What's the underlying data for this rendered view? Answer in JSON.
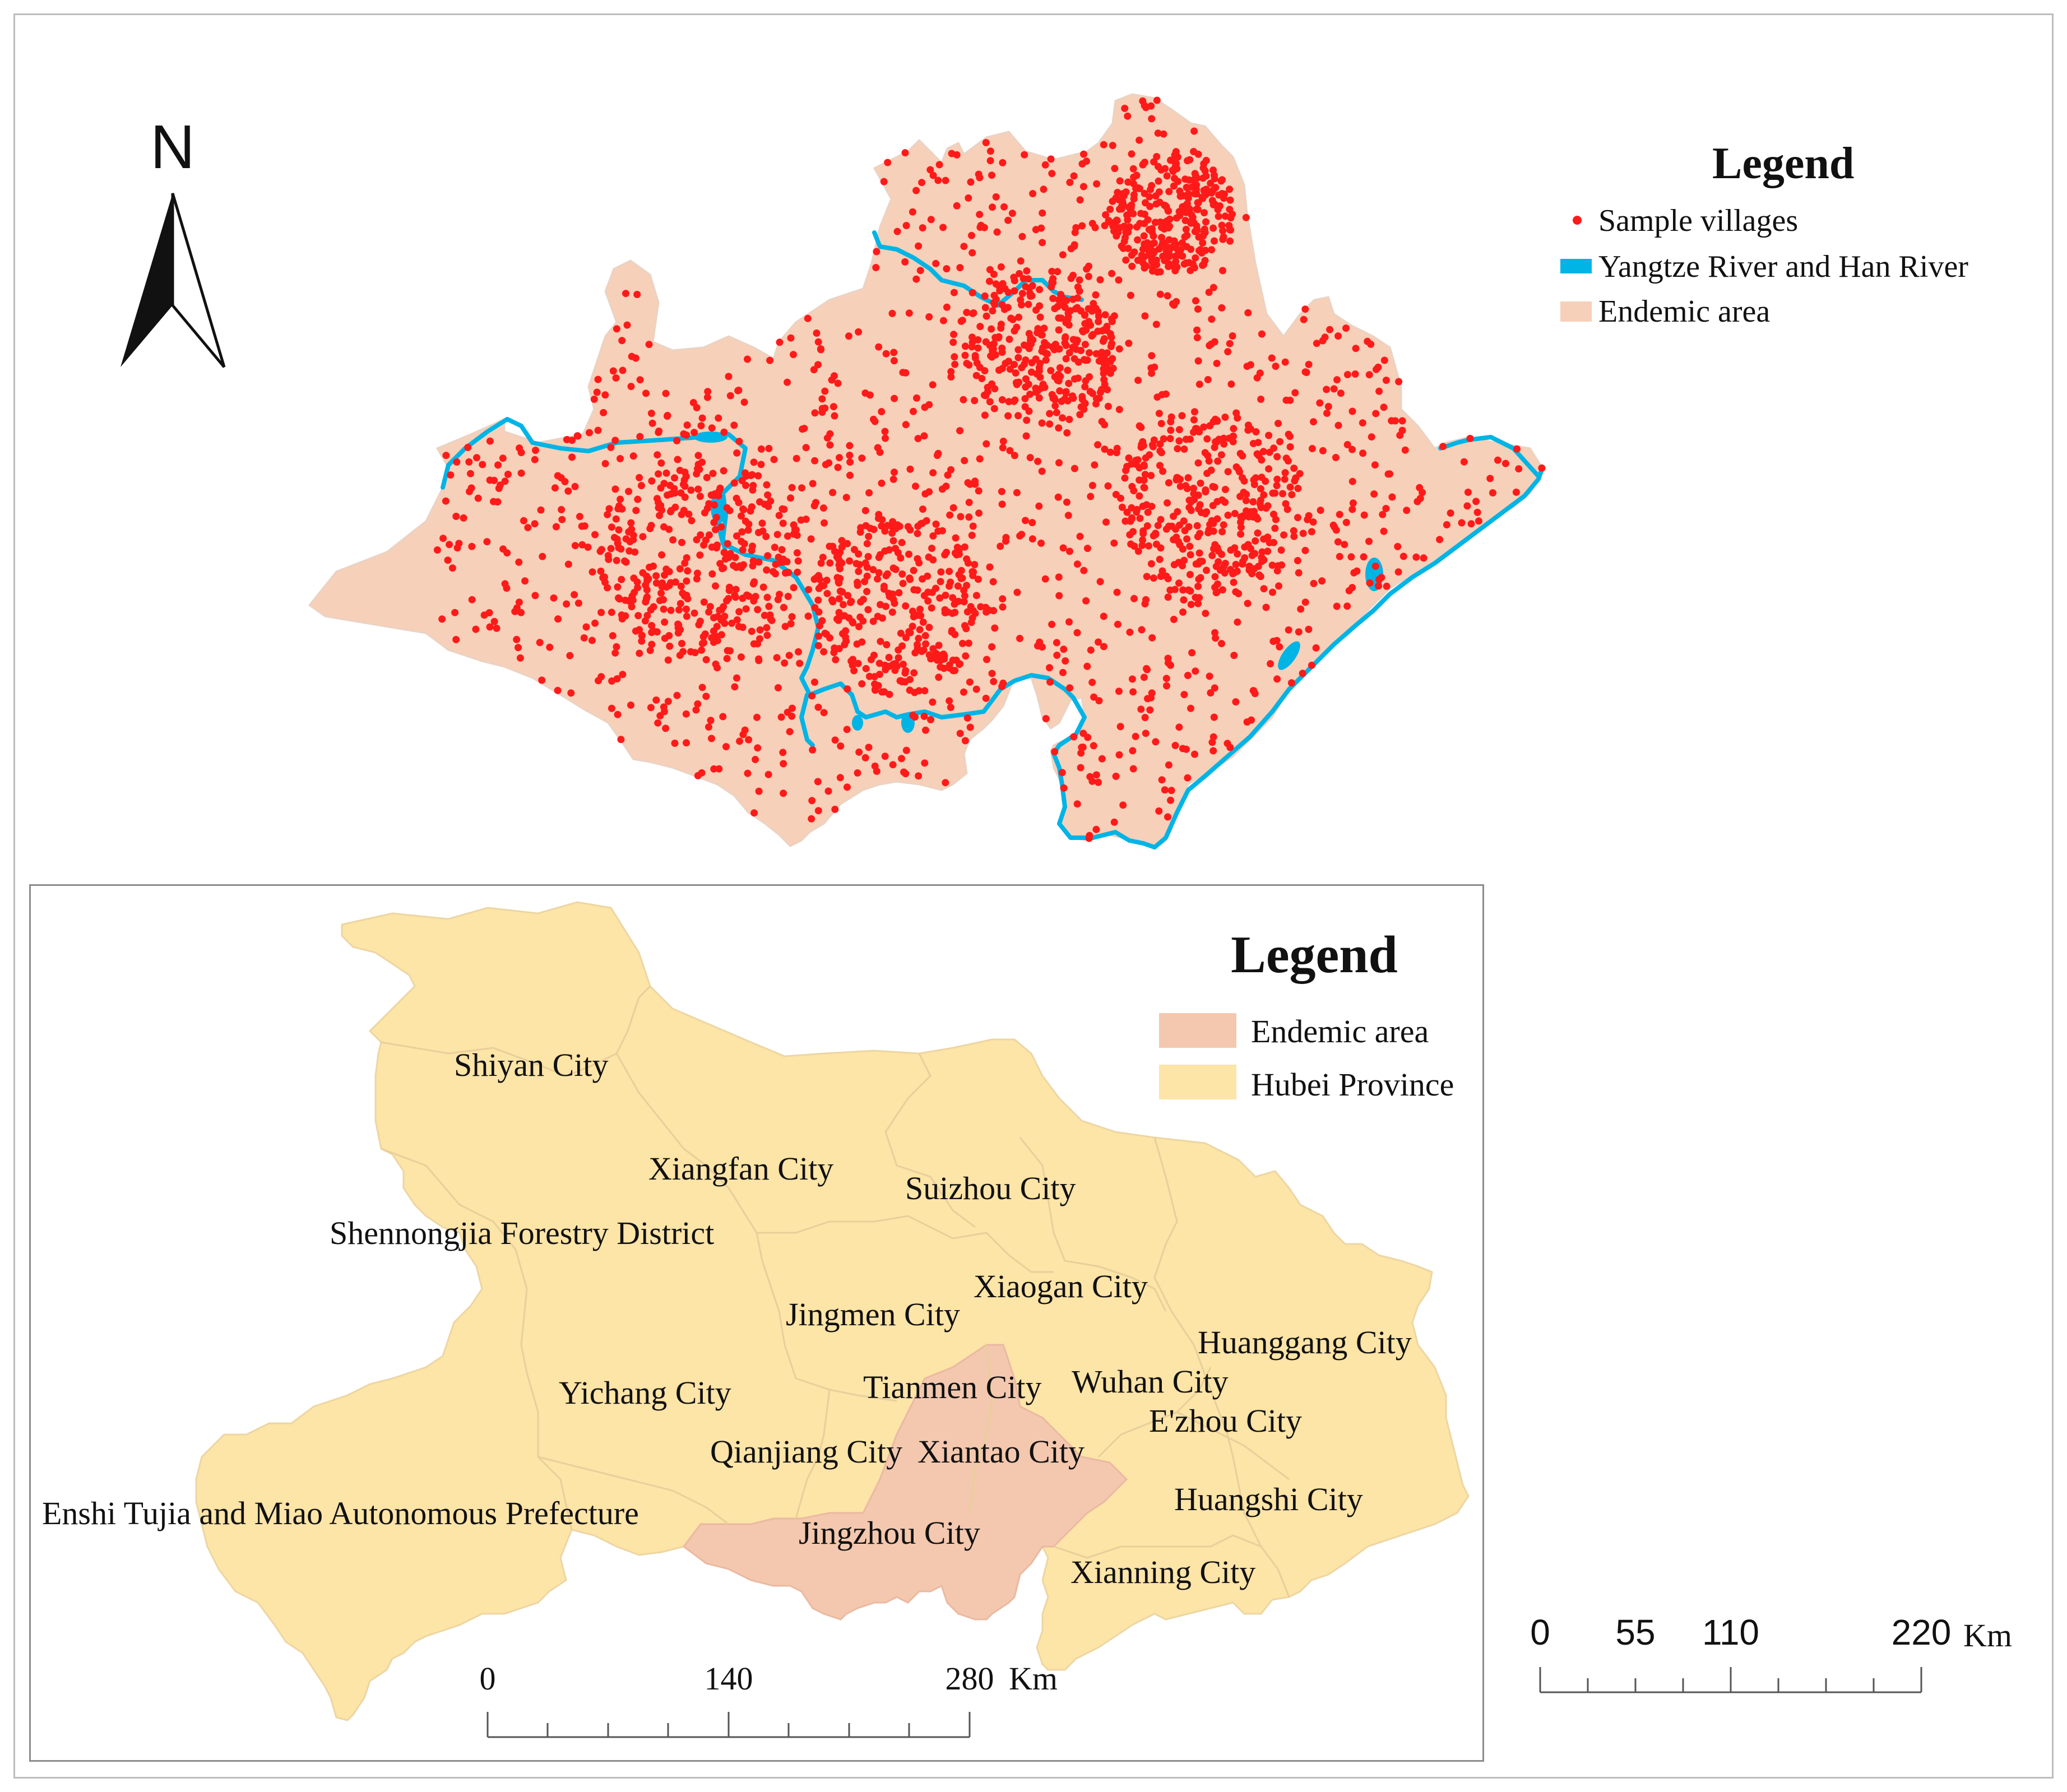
{
  "north_arrow": {
    "letter": "N"
  },
  "main_legend": {
    "title": "Legend",
    "items": [
      {
        "label": "Sample villages",
        "symbol": "red-dot",
        "color": "#ff1a1a"
      },
      {
        "label": "Yangtze River and Han River",
        "symbol": "blue-bar",
        "color": "#00b4e6"
      },
      {
        "label": "Endemic area",
        "symbol": "fill",
        "color": "#f6d0b8"
      }
    ]
  },
  "inset_legend": {
    "title": "Legend",
    "items": [
      {
        "label": "Endemic area",
        "color": "#f4c8ae"
      },
      {
        "label": "Hubei Province",
        "color": "#fde4a7"
      }
    ]
  },
  "cities": [
    "Shiyan City",
    "Xiangfan City",
    "Suizhou City",
    "Shennongjia Forestry District",
    "Xiaogan City",
    "Jingmen City",
    "Huanggang City",
    "Wuhan City",
    "Tianmen City",
    "Yichang City",
    "E'zhou City",
    "Qianjiang City",
    "Xiantao City",
    "Huangshi City",
    "Enshi Tujia and Miao Autonomous Prefecture",
    "Jingzhou City",
    "Xianning City"
  ],
  "inset_scale": {
    "ticks": [
      "0",
      "140",
      "280"
    ],
    "unit": "Km"
  },
  "main_scale": {
    "ticks": [
      "0",
      "55",
      "110",
      "220"
    ],
    "unit": "Km"
  },
  "colors": {
    "dot": "#ff1a1a",
    "river": "#00b4e6",
    "endemic": "#f6d0b8",
    "hubei": "#fde4a7",
    "endemic_inset": "#f4c8ae"
  }
}
